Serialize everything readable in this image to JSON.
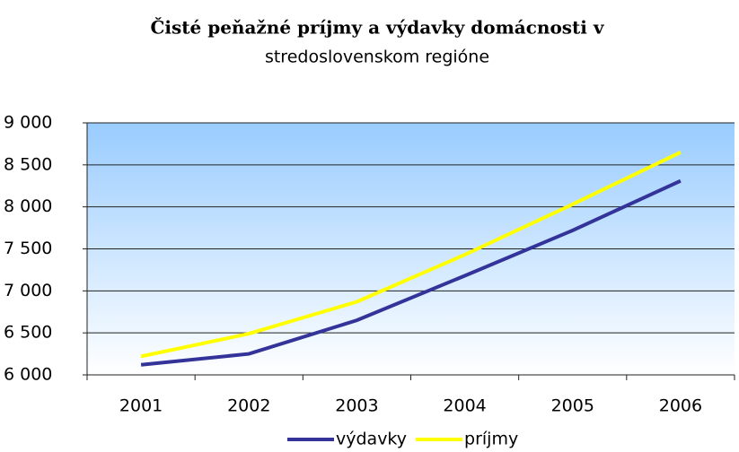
{
  "chart_data": {
    "type": "line",
    "title_lines": [
      "Čisté peňažné príjmy a výdavky domácnosti v",
      "stredoslovenskom regióne"
    ],
    "categories": [
      "2001",
      "2002",
      "2003",
      "2004",
      "2005",
      "2006"
    ],
    "series": [
      {
        "name": "výdavky",
        "color": "#333399",
        "values": [
          6120,
          6250,
          6650,
          7180,
          7720,
          8310
        ]
      },
      {
        "name": "príjmy",
        "color": "#ffff00",
        "values": [
          6220,
          6490,
          6870,
          7430,
          8030,
          8650
        ]
      }
    ],
    "ylim": [
      6000,
      9000
    ],
    "yticks": [
      {
        "value": 6000,
        "label": "6 000"
      },
      {
        "value": 6500,
        "label": "6 500"
      },
      {
        "value": 7000,
        "label": "7 000"
      },
      {
        "value": 7500,
        "label": "7 500"
      },
      {
        "value": 8000,
        "label": "8 000"
      },
      {
        "value": 8500,
        "label": "8 500"
      },
      {
        "value": 9000,
        "label": "9 000"
      }
    ],
    "grid": true,
    "legend": "bottom"
  }
}
